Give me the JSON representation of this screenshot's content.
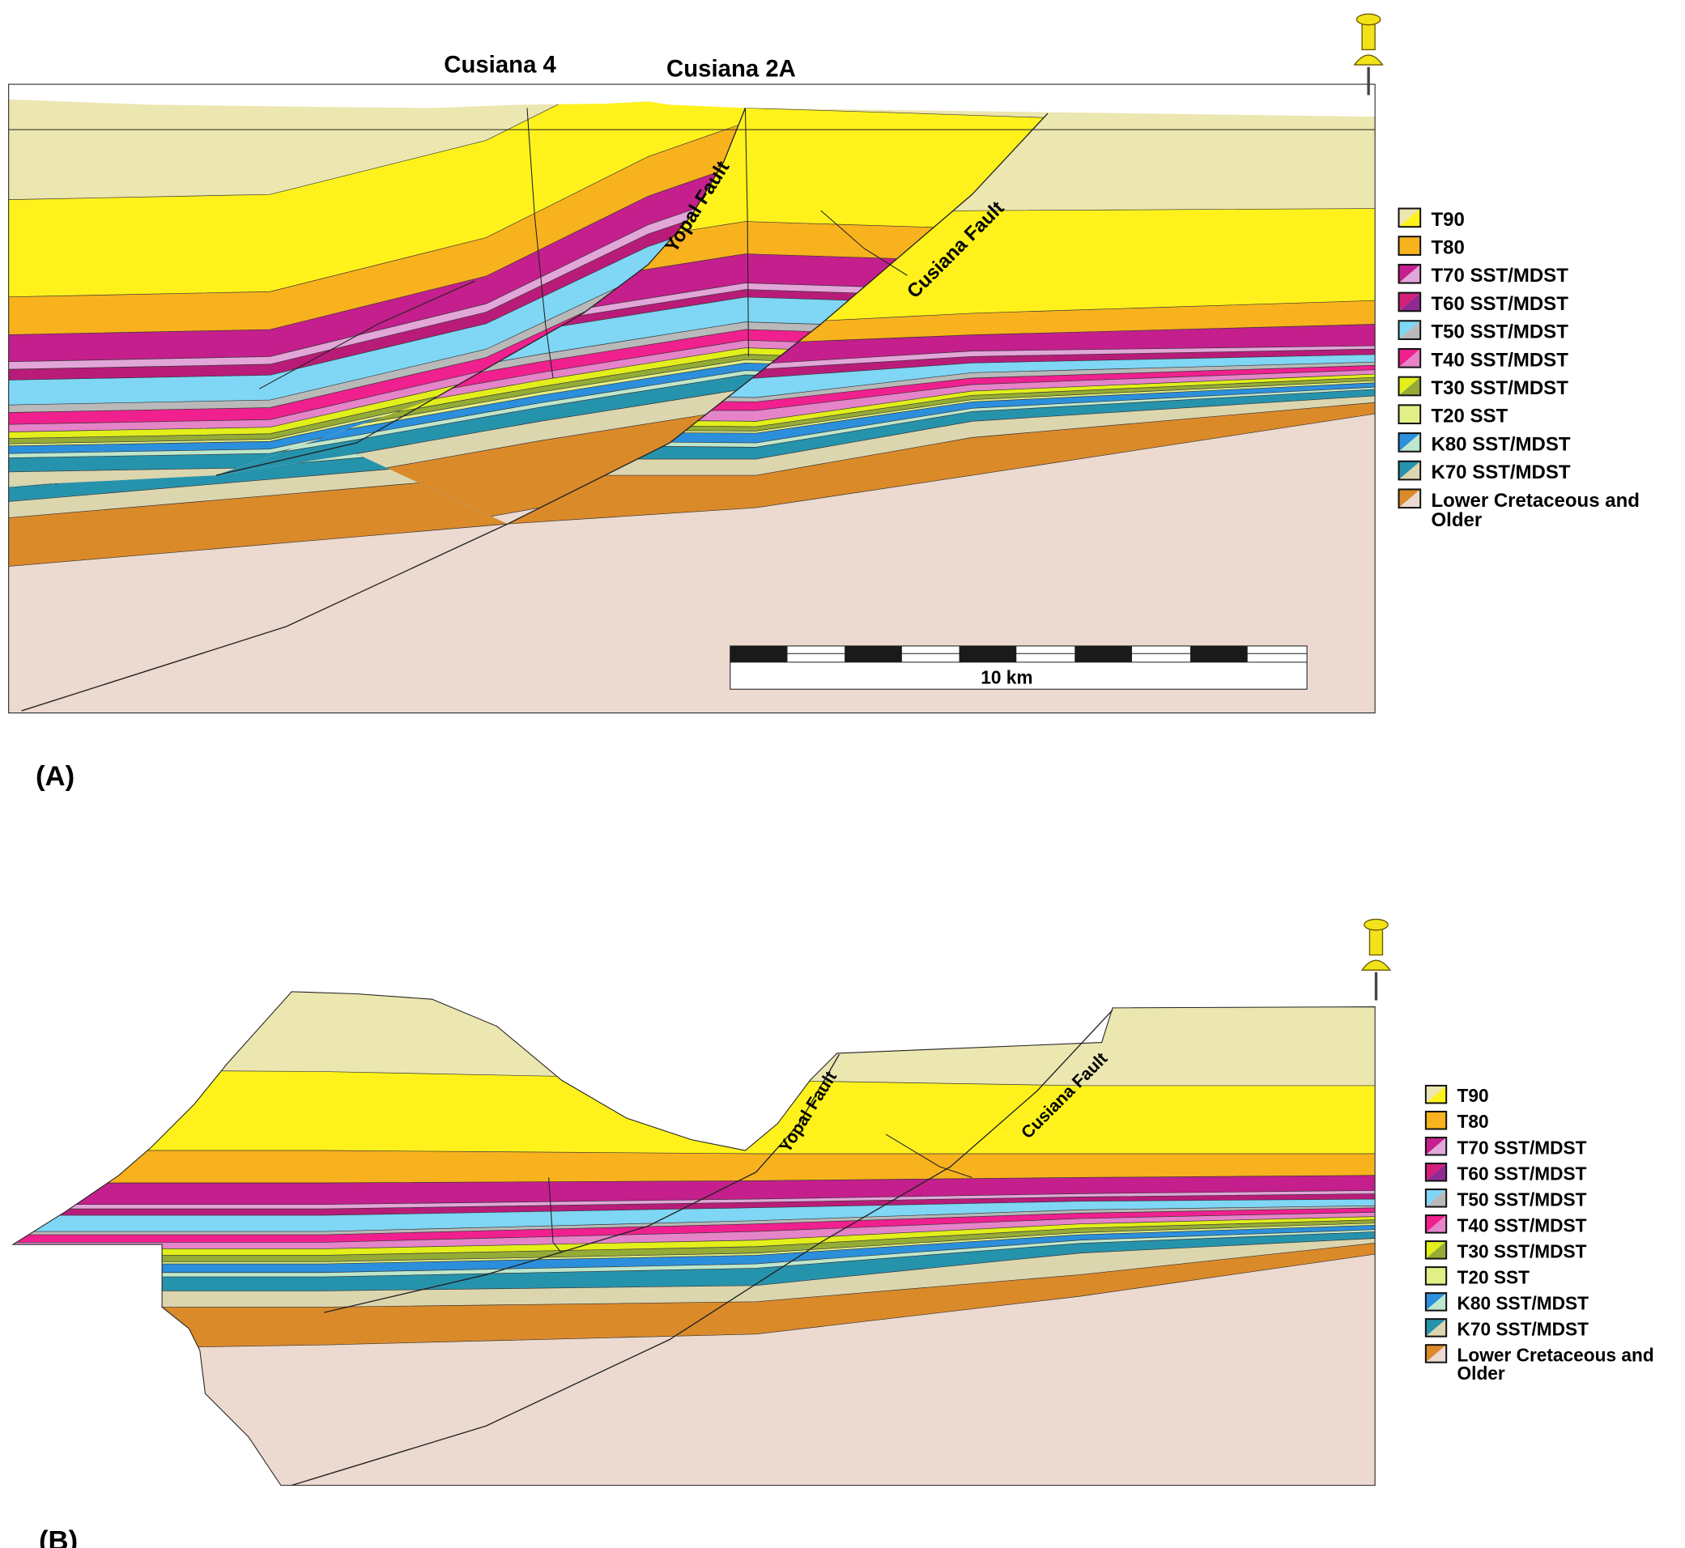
{
  "panel_a": {
    "label": "(A)",
    "wells": [
      "Cusiana 4",
      "Cusiana 2A"
    ],
    "faults": [
      "Yopal Fault",
      "Cusiana Fault"
    ],
    "scale_bar": "10 km",
    "icon": "pushpin-icon"
  },
  "panel_b": {
    "label": "(B)",
    "faults": [
      "Yopal Fault",
      "Cusiana Fault"
    ],
    "icon": "pushpin-icon"
  },
  "legend": [
    {
      "label": "T90",
      "colors": [
        "#ece6b0",
        "#fff21c"
      ]
    },
    {
      "label": "T80",
      "colors": [
        "#f8b21e",
        "#f8b21e"
      ]
    },
    {
      "label": "T70 SST/MDST",
      "colors": [
        "#c41f8c",
        "#e3a6d9"
      ]
    },
    {
      "label": "T60 SST/MDST",
      "colors": [
        "#d4207a",
        "#8e2a92"
      ]
    },
    {
      "label": "T50 SST/MDST",
      "colors": [
        "#7fd6f5",
        "#b9b9b9"
      ]
    },
    {
      "label": "T40 SST/MDST",
      "colors": [
        "#f0208f",
        "#e584c8"
      ]
    },
    {
      "label": "T30 SST/MDST",
      "colors": [
        "#e2ef1a",
        "#94ab36"
      ]
    },
    {
      "label": "T20 SST",
      "colors": [
        "#e1ef86",
        "#e1ef86"
      ]
    },
    {
      "label": "K80 SST/MDST",
      "colors": [
        "#2b8fdc",
        "#bde7cc"
      ]
    },
    {
      "label": "K70 SST/MDST",
      "colors": [
        "#2693ad",
        "#dcd6ae"
      ]
    },
    {
      "label": "Lower Cretaceous and",
      "label2": "Older",
      "colors": [
        "#db8a2a",
        "#ecd9cf"
      ]
    }
  ],
  "colors": {
    "t90_mdst": "#ece6b0",
    "t90_sst": "#fff21c",
    "t80": "#f8b21e",
    "t70_sst": "#c41f8c",
    "t70_mdst": "#e3a6d9",
    "t60": "#b81c78",
    "t50_sst": "#7fd6f5",
    "t50_mdst": "#b9b9b9",
    "t40_sst": "#f0208f",
    "t40_mdst": "#e584c8",
    "t30_sst": "#e2ef1a",
    "t30_mdst": "#94ab36",
    "t20": "#e1ef86",
    "k80_sst": "#2b8fdc",
    "k80_mdst": "#bde7cc",
    "k70_sst": "#2693ad",
    "k70_mdst": "#dcd6ae",
    "lower_cret": "#db8a2a",
    "older": "#ecd9cf",
    "pin": "#f2e21a"
  }
}
